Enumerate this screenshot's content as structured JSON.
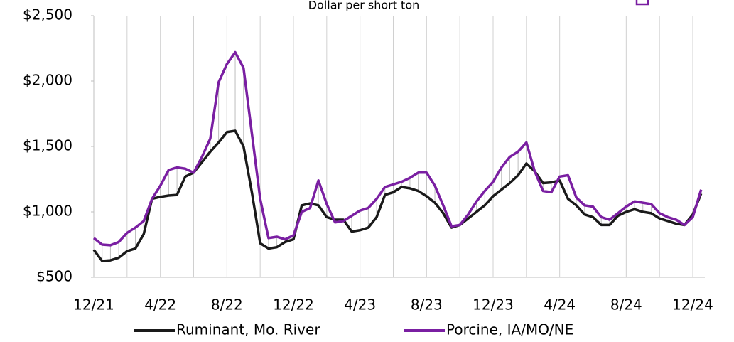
{
  "chart_data": {
    "type": "line",
    "subtitle": "Dollar per short ton",
    "categories": [
      "12/21",
      null,
      null,
      null,
      null,
      null,
      null,
      null,
      "4/22",
      null,
      null,
      null,
      null,
      null,
      null,
      null,
      "8/22",
      null,
      null,
      null,
      null,
      null,
      null,
      null,
      "12/22",
      null,
      null,
      null,
      null,
      null,
      null,
      null,
      "4/23",
      null,
      null,
      null,
      null,
      null,
      null,
      null,
      "8/23",
      null,
      null,
      null,
      null,
      null,
      null,
      null,
      "12/23",
      null,
      null,
      null,
      null,
      null,
      null,
      null,
      "4/24",
      null,
      null,
      null,
      null,
      null,
      null,
      null,
      "8/24",
      null,
      null,
      null,
      null,
      null,
      null,
      null,
      "12/24",
      null
    ],
    "series": [
      {
        "name": "Ruminant, Mo. River",
        "color": "#1a1a1a",
        "values": [
          710,
          625,
          630,
          650,
          700,
          720,
          830,
          1100,
          1115,
          1125,
          1130,
          1270,
          1300,
          1380,
          1460,
          1530,
          1610,
          1620,
          1500,
          1150,
          760,
          720,
          730,
          770,
          790,
          1050,
          1065,
          1050,
          960,
          940,
          940,
          850,
          860,
          880,
          960,
          1130,
          1150,
          1190,
          1180,
          1160,
          1120,
          1070,
          990,
          880,
          900,
          950,
          1000,
          1050,
          1120,
          1170,
          1220,
          1280,
          1370,
          1310,
          1220,
          1225,
          1240,
          1100,
          1050,
          980,
          960,
          900,
          900,
          970,
          1000,
          1020,
          1000,
          990,
          950,
          930,
          910,
          900,
          980,
          1140
        ]
      },
      {
        "name": "Porcine, IA/MO/NE",
        "color": "#7a1fa2",
        "values": [
          800,
          750,
          745,
          770,
          840,
          880,
          930,
          1100,
          1200,
          1320,
          1340,
          1330,
          1300,
          1420,
          1560,
          1990,
          2130,
          2220,
          2100,
          1600,
          1100,
          800,
          810,
          790,
          820,
          1000,
          1030,
          1240,
          1060,
          920,
          930,
          970,
          1010,
          1030,
          1100,
          1190,
          1210,
          1230,
          1260,
          1300,
          1300,
          1200,
          1050,
          890,
          900,
          980,
          1080,
          1160,
          1230,
          1340,
          1420,
          1460,
          1530,
          1310,
          1160,
          1150,
          1270,
          1280,
          1110,
          1050,
          1040,
          960,
          940,
          990,
          1040,
          1080,
          1070,
          1060,
          990,
          960,
          940,
          900,
          960,
          1170
        ]
      }
    ],
    "ylim": [
      500,
      2500
    ],
    "yticks": [
      {
        "value": 500,
        "label": "$500"
      },
      {
        "value": 1000,
        "label": "$1,000"
      },
      {
        "value": 1500,
        "label": "$1,500"
      },
      {
        "value": 2000,
        "label": "$2,000"
      },
      {
        "value": 2500,
        "label": "$2,500"
      }
    ],
    "grid": true
  }
}
